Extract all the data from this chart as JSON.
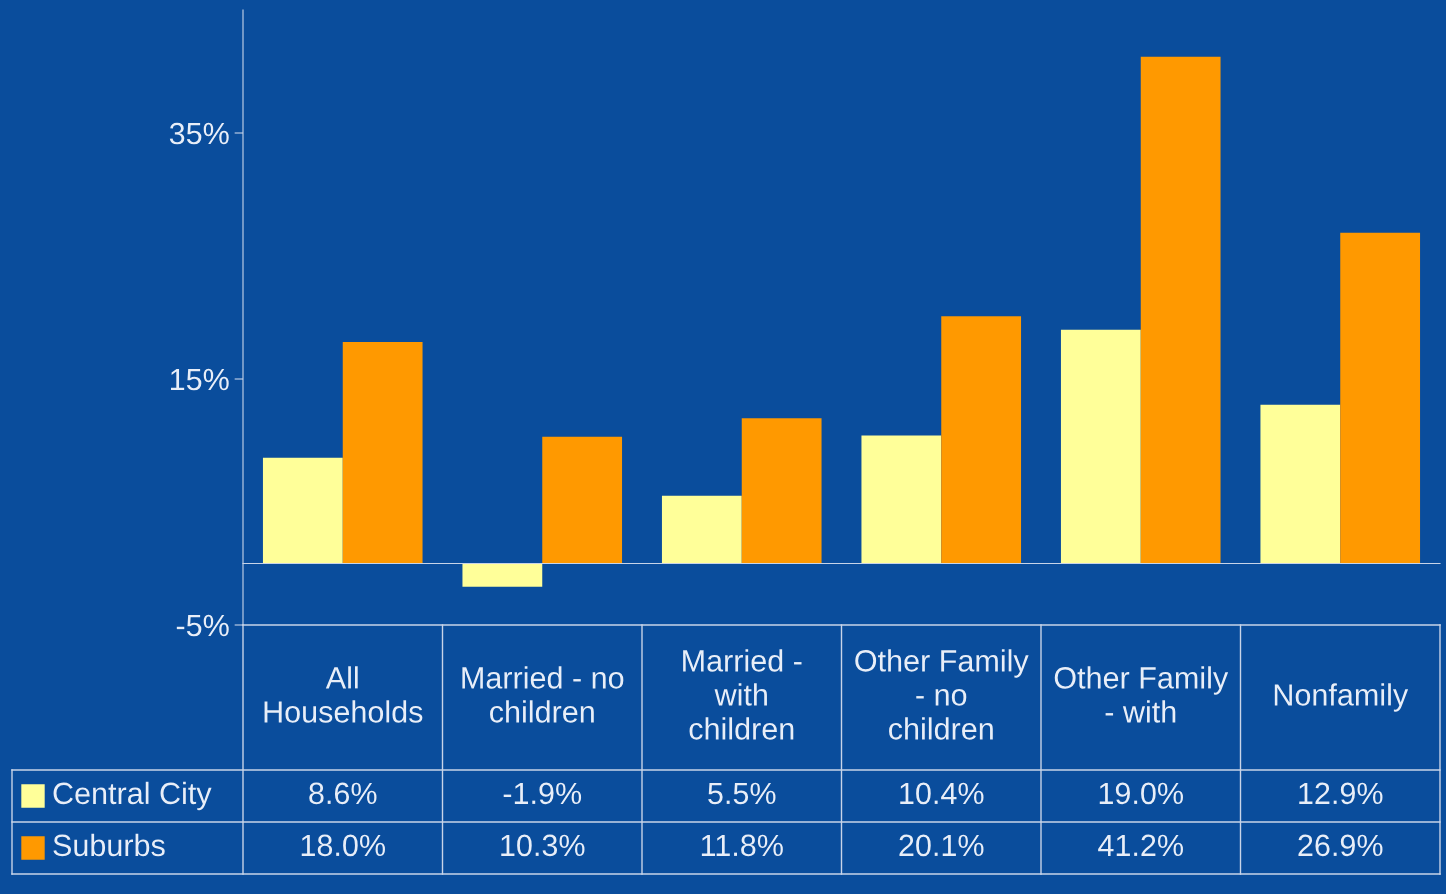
{
  "chart_data": {
    "type": "bar",
    "categories": [
      "All Households",
      "Married - no children",
      "Married - with children",
      "Other Family - no children",
      "Other Family - with",
      "Nonfamily"
    ],
    "series": [
      {
        "name": "Central City",
        "color": "#ffff99",
        "values": [
          8.6,
          -1.9,
          5.5,
          10.4,
          19.0,
          12.9
        ],
        "value_labels": [
          "8.6%",
          "-1.9%",
          "5.5%",
          "10.4%",
          "19.0%",
          "12.9%"
        ]
      },
      {
        "name": "Suburbs",
        "color": "#ff9900",
        "values": [
          18.0,
          10.3,
          11.8,
          20.1,
          41.2,
          26.9
        ],
        "value_labels": [
          "18.0%",
          "10.3%",
          "11.8%",
          "20.1%",
          "41.2%",
          "26.9%"
        ]
      }
    ],
    "ylim": [
      -5,
      45
    ],
    "yticks": [
      {
        "value": -5,
        "label": "-5%"
      },
      {
        "value": 15,
        "label": "15%"
      },
      {
        "value": 35,
        "label": "35%"
      }
    ],
    "grid": false,
    "legend": "bottom"
  }
}
